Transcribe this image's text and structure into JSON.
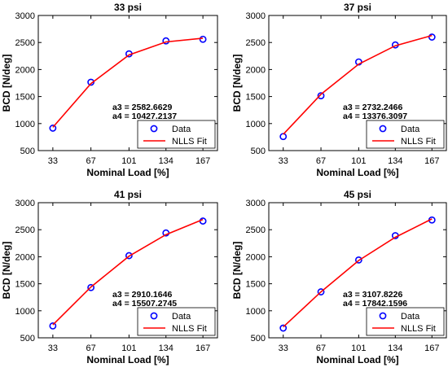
{
  "chart_data": [
    {
      "type": "line",
      "title": "33 psi",
      "xlabel": "Nominal Load [%]",
      "ylabel": "BCD [N/deg]",
      "xticks": [
        33,
        67,
        101,
        134,
        167
      ],
      "xtick_labels": [
        "33",
        "67",
        "101",
        "134",
        "167"
      ],
      "yticks": [
        500,
        1000,
        1500,
        2000,
        2500,
        3000
      ],
      "xlim": [
        20,
        180
      ],
      "ylim": [
        500,
        3000
      ],
      "legend_position": "bottom-right",
      "series": [
        {
          "name": "Data",
          "style": "markers",
          "color": "#0000ff",
          "x": [
            33,
            67,
            101,
            134,
            167
          ],
          "y": [
            915,
            1765,
            2290,
            2530,
            2560
          ]
        },
        {
          "name": "NLLS Fit",
          "style": "line",
          "color": "#ff0000",
          "x": [
            33,
            67,
            101,
            134,
            167
          ],
          "y": [
            930,
            1740,
            2270,
            2510,
            2580
          ]
        }
      ],
      "annotations": [
        "a3 = 2582.6629",
        "a4 = 10427.2137"
      ]
    },
    {
      "type": "line",
      "title": "37 psi",
      "xlabel": "Nominal Load [%]",
      "ylabel": "BCD [N/deg]",
      "xticks": [
        33,
        67,
        101,
        134,
        167
      ],
      "xtick_labels": [
        "33",
        "67",
        "101",
        "134",
        "167"
      ],
      "yticks": [
        500,
        1000,
        1500,
        2000,
        2500,
        3000
      ],
      "xlim": [
        20,
        180
      ],
      "ylim": [
        500,
        3000
      ],
      "legend_position": "bottom-right",
      "series": [
        {
          "name": "Data",
          "style": "markers",
          "color": "#0000ff",
          "x": [
            33,
            67,
            101,
            134,
            167
          ],
          "y": [
            760,
            1515,
            2140,
            2455,
            2600
          ]
        },
        {
          "name": "NLLS Fit",
          "style": "line",
          "color": "#ff0000",
          "x": [
            33,
            67,
            101,
            134,
            167
          ],
          "y": [
            800,
            1540,
            2100,
            2440,
            2630
          ]
        }
      ],
      "annotations": [
        "a3 = 2732.2466",
        "a4 = 13376.3097"
      ]
    },
    {
      "type": "line",
      "title": "41 psi",
      "xlabel": "Nominal Load [%]",
      "ylabel": "BCD [N/deg]",
      "xticks": [
        33,
        67,
        101,
        134,
        167
      ],
      "xtick_labels": [
        "33",
        "67",
        "101",
        "134",
        "167"
      ],
      "yticks": [
        500,
        1000,
        1500,
        2000,
        2500,
        3000
      ],
      "xlim": [
        20,
        180
      ],
      "ylim": [
        500,
        3000
      ],
      "legend_position": "bottom-right",
      "series": [
        {
          "name": "Data",
          "style": "markers",
          "color": "#0000ff",
          "x": [
            33,
            67,
            101,
            134,
            167
          ],
          "y": [
            720,
            1430,
            2020,
            2440,
            2660
          ]
        },
        {
          "name": "NLLS Fit",
          "style": "line",
          "color": "#ff0000",
          "x": [
            33,
            67,
            101,
            134,
            167
          ],
          "y": [
            740,
            1440,
            2010,
            2410,
            2690
          ]
        }
      ],
      "annotations": [
        "a3 = 2910.1646",
        "a4 = 15507.2745"
      ]
    },
    {
      "type": "line",
      "title": "45 psi",
      "xlabel": "Nominal Load [%]",
      "ylabel": "BCD [N/deg]",
      "xticks": [
        33,
        67,
        101,
        134,
        167
      ],
      "xtick_labels": [
        "33",
        "67",
        "101",
        "134",
        "167"
      ],
      "yticks": [
        500,
        1000,
        1500,
        2000,
        2500,
        3000
      ],
      "xlim": [
        20,
        180
      ],
      "ylim": [
        500,
        3000
      ],
      "legend_position": "bottom-right",
      "series": [
        {
          "name": "Data",
          "style": "markers",
          "color": "#0000ff",
          "x": [
            33,
            67,
            101,
            134,
            167
          ],
          "y": [
            680,
            1350,
            1940,
            2390,
            2680
          ]
        },
        {
          "name": "NLLS Fit",
          "style": "line",
          "color": "#ff0000",
          "x": [
            33,
            67,
            101,
            134,
            167
          ],
          "y": [
            700,
            1350,
            1930,
            2360,
            2700
          ]
        }
      ],
      "annotations": [
        "a3 = 3107.8226",
        "a4 = 17842.1596"
      ]
    }
  ]
}
